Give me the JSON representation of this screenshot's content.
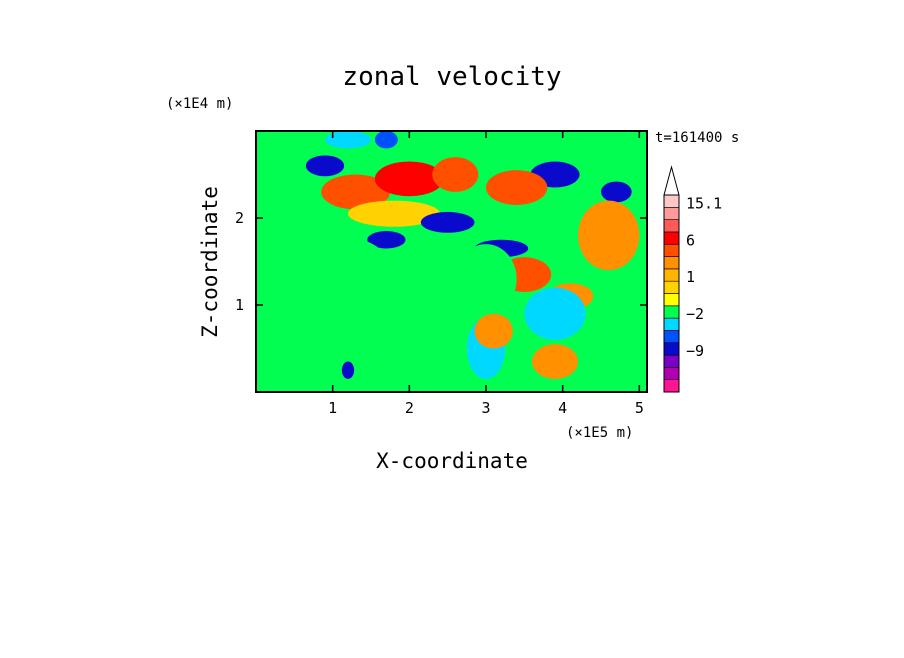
{
  "chart_data": {
    "type": "heatmap",
    "title": "zonal velocity",
    "xlabel": "X-coordinate",
    "ylabel": "Z-coordinate",
    "x_multiplier": "(×1E5 m)",
    "y_multiplier": "(×1E4 m)",
    "time_label": "t=161400 s",
    "xlim": [
      0,
      5.1
    ],
    "ylim": [
      0,
      3.0
    ],
    "x_ticks": [
      "1",
      "2",
      "3",
      "4",
      "5"
    ],
    "y_ticks": [
      "1",
      "2"
    ],
    "colorbar": {
      "labels": [
        "15.1",
        "6",
        "1",
        "-2",
        "-9"
      ],
      "colors": [
        "#ff1493",
        "#b000b0",
        "#7a00c8",
        "#0a0acc",
        "#0050ff",
        "#00d8ff",
        "#00ff50",
        "#ffff00",
        "#ffd200",
        "#ffb400",
        "#ff9000",
        "#ff5000",
        "#ff0000",
        "#ff5a5a",
        "#ff9a9a",
        "#ffc8c8"
      ]
    },
    "features": [
      {
        "x": 0.9,
        "z": 2.6,
        "level": 3,
        "rx": 0.25,
        "rz": 0.12
      },
      {
        "x": 1.3,
        "z": 2.3,
        "level": 11,
        "rx": 0.45,
        "rz": 0.2
      },
      {
        "x": 2.0,
        "z": 2.45,
        "level": 12,
        "rx": 0.45,
        "rz": 0.2
      },
      {
        "x": 1.8,
        "z": 2.05,
        "level": 8,
        "rx": 0.6,
        "rz": 0.15
      },
      {
        "x": 2.5,
        "z": 1.95,
        "level": 3,
        "rx": 0.35,
        "rz": 0.12
      },
      {
        "x": 3.2,
        "z": 1.65,
        "level": 3,
        "rx": 0.35,
        "rz": 0.1
      },
      {
        "x": 1.7,
        "z": 1.75,
        "level": 3,
        "rx": 0.25,
        "rz": 0.1
      },
      {
        "x": 3.9,
        "z": 2.5,
        "level": 3,
        "rx": 0.32,
        "rz": 0.15
      },
      {
        "x": 4.7,
        "z": 2.3,
        "level": 3,
        "rx": 0.2,
        "rz": 0.12
      },
      {
        "x": 3.4,
        "z": 2.35,
        "level": 11,
        "rx": 0.4,
        "rz": 0.2
      },
      {
        "x": 2.6,
        "z": 2.5,
        "level": 11,
        "rx": 0.3,
        "rz": 0.2
      },
      {
        "x": 3.5,
        "z": 1.35,
        "level": 11,
        "rx": 0.35,
        "rz": 0.2
      },
      {
        "x": 4.1,
        "z": 1.1,
        "level": 10,
        "rx": 0.3,
        "rz": 0.15
      },
      {
        "x": 1.2,
        "z": 2.9,
        "level": 5,
        "rx": 0.3,
        "rz": 0.1
      },
      {
        "x": 1.7,
        "z": 2.9,
        "level": 4,
        "rx": 0.15,
        "rz": 0.1
      },
      {
        "x": 1.0,
        "z": 1.5,
        "level": 6,
        "rx": 0.7,
        "rz": 0.3
      },
      {
        "x": 3.0,
        "z": 1.3,
        "level": 6,
        "rx": 0.4,
        "rz": 0.4
      },
      {
        "x": 0.5,
        "z": 0.6,
        "level": 6,
        "rx": 0.6,
        "rz": 0.3
      },
      {
        "x": 2.2,
        "z": 0.3,
        "level": 6,
        "rx": 0.6,
        "rz": 0.3
      },
      {
        "x": 3.0,
        "z": 0.5,
        "level": 5,
        "rx": 0.25,
        "rz": 0.35
      },
      {
        "x": 3.1,
        "z": 0.7,
        "level": 10,
        "rx": 0.25,
        "rz": 0.2
      },
      {
        "x": 3.9,
        "z": 0.35,
        "level": 10,
        "rx": 0.3,
        "rz": 0.2
      },
      {
        "x": 1.2,
        "z": 0.25,
        "level": 3,
        "rx": 0.08,
        "rz": 0.1
      },
      {
        "x": 3.9,
        "z": 0.9,
        "level": 5,
        "rx": 0.4,
        "rz": 0.3
      },
      {
        "x": 4.6,
        "z": 1.8,
        "level": 10,
        "rx": 0.4,
        "rz": 0.4
      },
      {
        "x": 4.6,
        "z": 0.6,
        "level": 6,
        "rx": 0.4,
        "rz": 0.3
      }
    ]
  }
}
